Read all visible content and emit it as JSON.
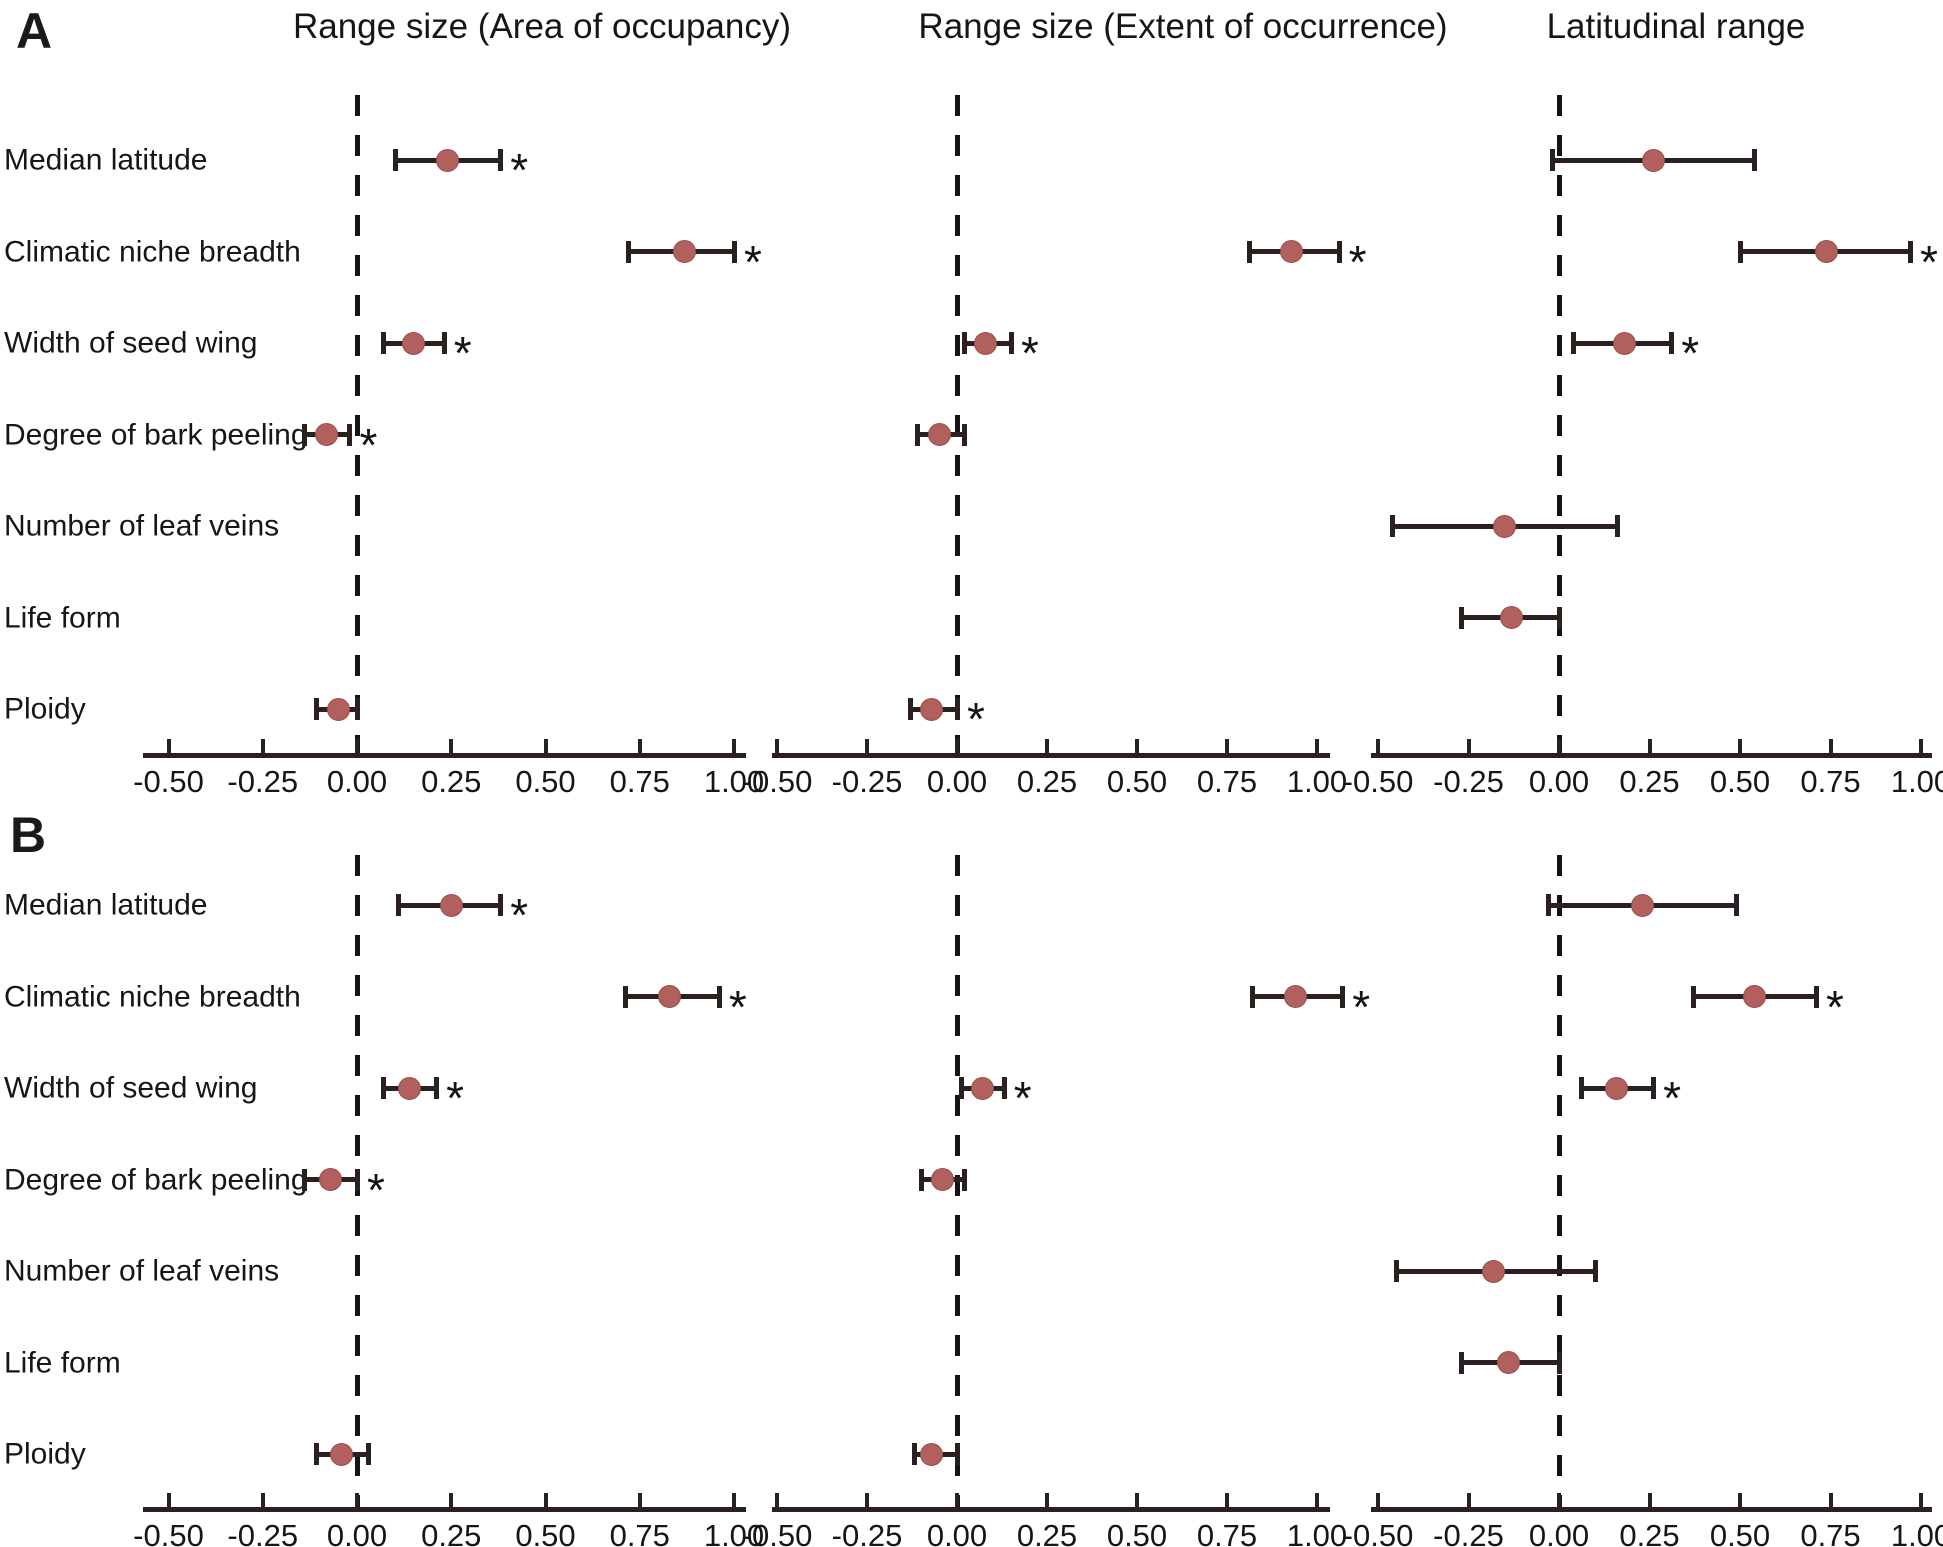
{
  "figure": {
    "panel_labels": [
      "A",
      "B"
    ],
    "column_titles": [
      "Range size (Area of occupancy)",
      "Range size (Extent of occurrence)",
      "Latitudinal range"
    ],
    "row_labels": [
      "Median latitude",
      "Climatic niche breadth",
      "Width of seed wing",
      "Degree of bark peeling",
      "Number of leaf veins",
      "Life form",
      "Ploidy"
    ],
    "x_tick_labels": [
      "-0.50",
      "-0.25",
      "0.00",
      "0.25",
      "0.50",
      "0.75",
      "1.00"
    ],
    "significance_symbol": "*",
    "colors": {
      "point_fill": "#b2605e",
      "error_bar": "#2a211f",
      "text": "#161616",
      "zero_line": "#141414",
      "background": "#ffffff"
    }
  },
  "chart_data": {
    "type": "scatter",
    "subtype": "forest-plot-grid",
    "x_range": [
      -0.5,
      1.0
    ],
    "x_ticks": [
      -0.5,
      -0.25,
      0.0,
      0.25,
      0.5,
      0.75,
      1.0
    ],
    "grid": "off",
    "zero_reference_line": "dashed",
    "row_categories": [
      "Median latitude",
      "Climatic niche breadth",
      "Width of seed wing",
      "Degree of bark peeling",
      "Number of leaf veins",
      "Life form",
      "Ploidy"
    ],
    "panels": [
      {
        "label": "A",
        "plots": [
          {
            "title": "Range size (Area of occupancy)",
            "points": [
              {
                "row": "Median latitude",
                "est": 0.24,
                "lo": 0.1,
                "hi": 0.38,
                "sig": true
              },
              {
                "row": "Climatic niche breadth",
                "est": 0.87,
                "lo": 0.72,
                "hi": 1.0,
                "sig": true
              },
              {
                "row": "Width of seed wing",
                "est": 0.15,
                "lo": 0.07,
                "hi": 0.23,
                "sig": true
              },
              {
                "row": "Degree of bark peeling",
                "est": -0.08,
                "lo": -0.14,
                "hi": -0.02,
                "sig": true
              },
              {
                "row": "Ploidy",
                "est": -0.05,
                "lo": -0.11,
                "hi": 0.0,
                "sig": false
              }
            ]
          },
          {
            "title": "Range size (Extent of occurrence)",
            "points": [
              {
                "row": "Climatic niche breadth",
                "est": 0.93,
                "lo": 0.81,
                "hi": 1.06,
                "sig": true
              },
              {
                "row": "Width of seed wing",
                "est": 0.08,
                "lo": 0.02,
                "hi": 0.15,
                "sig": true
              },
              {
                "row": "Degree of bark peeling",
                "est": -0.05,
                "lo": -0.11,
                "hi": 0.02,
                "sig": false
              },
              {
                "row": "Ploidy",
                "est": -0.07,
                "lo": -0.13,
                "hi": 0.0,
                "sig": true
              }
            ]
          },
          {
            "title": "Latitudinal range",
            "points": [
              {
                "row": "Median latitude",
                "est": 0.26,
                "lo": -0.02,
                "hi": 0.54,
                "sig": false
              },
              {
                "row": "Climatic niche breadth",
                "est": 0.74,
                "lo": 0.5,
                "hi": 0.97,
                "sig": true
              },
              {
                "row": "Width of seed wing",
                "est": 0.18,
                "lo": 0.04,
                "hi": 0.31,
                "sig": true
              },
              {
                "row": "Number of leaf veins",
                "est": -0.15,
                "lo": -0.46,
                "hi": 0.16,
                "sig": false
              },
              {
                "row": "Life form",
                "est": -0.13,
                "lo": -0.27,
                "hi": 0.0,
                "sig": false
              }
            ]
          }
        ]
      },
      {
        "label": "B",
        "plots": [
          {
            "title": "Range size (Area of occupancy)",
            "points": [
              {
                "row": "Median latitude",
                "est": 0.25,
                "lo": 0.11,
                "hi": 0.38,
                "sig": true
              },
              {
                "row": "Climatic niche breadth",
                "est": 0.83,
                "lo": 0.71,
                "hi": 0.96,
                "sig": true
              },
              {
                "row": "Width of seed wing",
                "est": 0.14,
                "lo": 0.07,
                "hi": 0.21,
                "sig": true
              },
              {
                "row": "Degree of bark peeling",
                "est": -0.07,
                "lo": -0.14,
                "hi": 0.0,
                "sig": true
              },
              {
                "row": "Ploidy",
                "est": -0.04,
                "lo": -0.11,
                "hi": 0.03,
                "sig": false
              }
            ]
          },
          {
            "title": "Range size (Extent of occurrence)",
            "points": [
              {
                "row": "Climatic niche breadth",
                "est": 0.94,
                "lo": 0.82,
                "hi": 1.07,
                "sig": true
              },
              {
                "row": "Width of seed wing",
                "est": 0.07,
                "lo": 0.01,
                "hi": 0.13,
                "sig": true
              },
              {
                "row": "Degree of bark peeling",
                "est": -0.04,
                "lo": -0.1,
                "hi": 0.02,
                "sig": false
              },
              {
                "row": "Ploidy",
                "est": -0.07,
                "lo": -0.12,
                "hi": 0.0,
                "sig": false
              }
            ]
          },
          {
            "title": "Latitudinal range",
            "points": [
              {
                "row": "Median latitude",
                "est": 0.23,
                "lo": -0.03,
                "hi": 0.49,
                "sig": false
              },
              {
                "row": "Climatic niche breadth",
                "est": 0.54,
                "lo": 0.37,
                "hi": 0.71,
                "sig": true
              },
              {
                "row": "Width of seed wing",
                "est": 0.16,
                "lo": 0.06,
                "hi": 0.26,
                "sig": true
              },
              {
                "row": "Number of leaf veins",
                "est": -0.18,
                "lo": -0.45,
                "hi": 0.1,
                "sig": false
              },
              {
                "row": "Life form",
                "est": -0.14,
                "lo": -0.27,
                "hi": 0.0,
                "sig": false
              }
            ]
          }
        ]
      }
    ]
  }
}
